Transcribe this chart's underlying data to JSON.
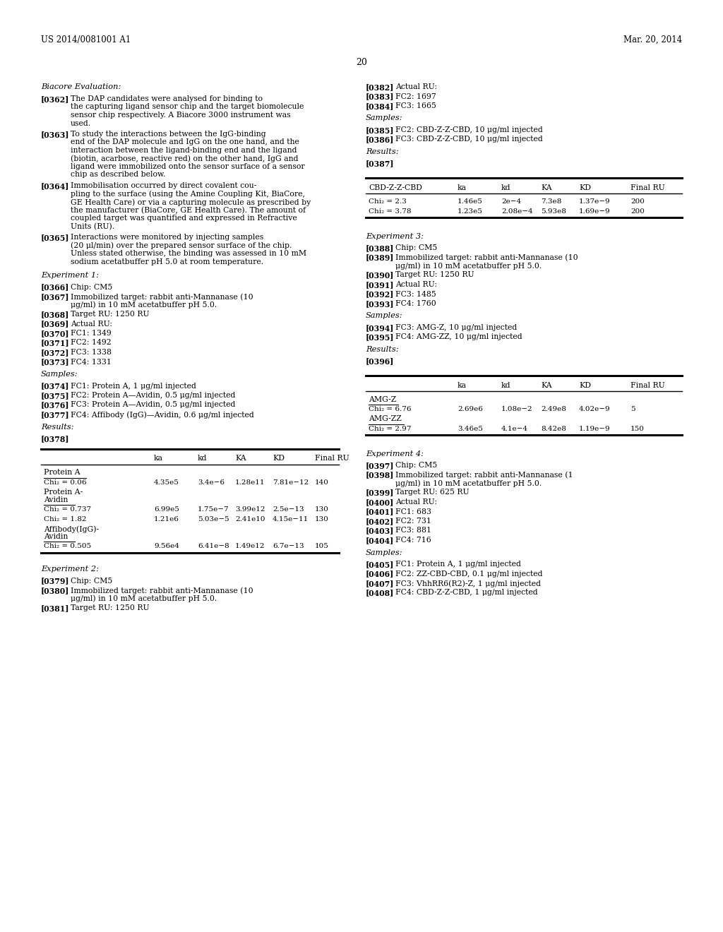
{
  "header_left": "US 2014/0081001 A1",
  "header_right": "Mar. 20, 2014",
  "page_number": "20",
  "background_color": "#ffffff"
}
